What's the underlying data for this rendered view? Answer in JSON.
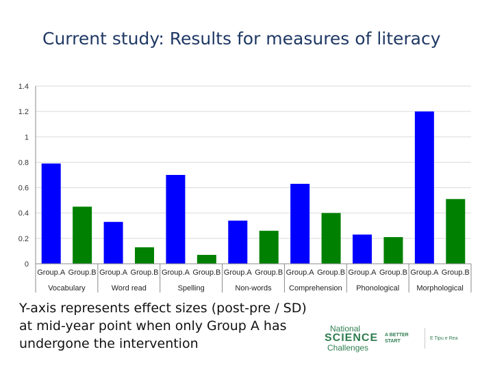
{
  "title": "Current study: Results for measures of literacy",
  "caption": "Y-axis represents effect sizes (post-pre / SD) at mid-year point when only Group A has undergone the intervention",
  "logos": {
    "national": "National",
    "science": "SCIENCE",
    "challenges": "Challenges",
    "a_better_start": "A BETTER START",
    "maori": "E Tipu e Rea"
  },
  "colors": {
    "group_a": "#0000ff",
    "group_b": "#008000",
    "gridline": "#d9d9d9",
    "axis": "#888888"
  },
  "chart_data": {
    "type": "bar",
    "categories": [
      "Vocabulary",
      "Word read",
      "Spelling",
      "Non-words",
      "Comprehension",
      "Phonological",
      "Morphological"
    ],
    "subcategories": [
      "Group.A",
      "Group.B"
    ],
    "series": [
      {
        "name": "Group.A",
        "values": [
          0.79,
          0.33,
          0.7,
          0.34,
          0.63,
          0.23,
          1.2
        ]
      },
      {
        "name": "Group.B",
        "values": [
          0.45,
          0.13,
          0.07,
          0.26,
          0.4,
          0.21,
          0.51
        ]
      }
    ],
    "yticks": [
      "0",
      "0.2",
      "0.4",
      "0.6",
      "0.8",
      "1",
      "1.2",
      "1.4"
    ],
    "ylim": [
      0,
      1.4
    ],
    "grid": true,
    "legend": "none"
  }
}
